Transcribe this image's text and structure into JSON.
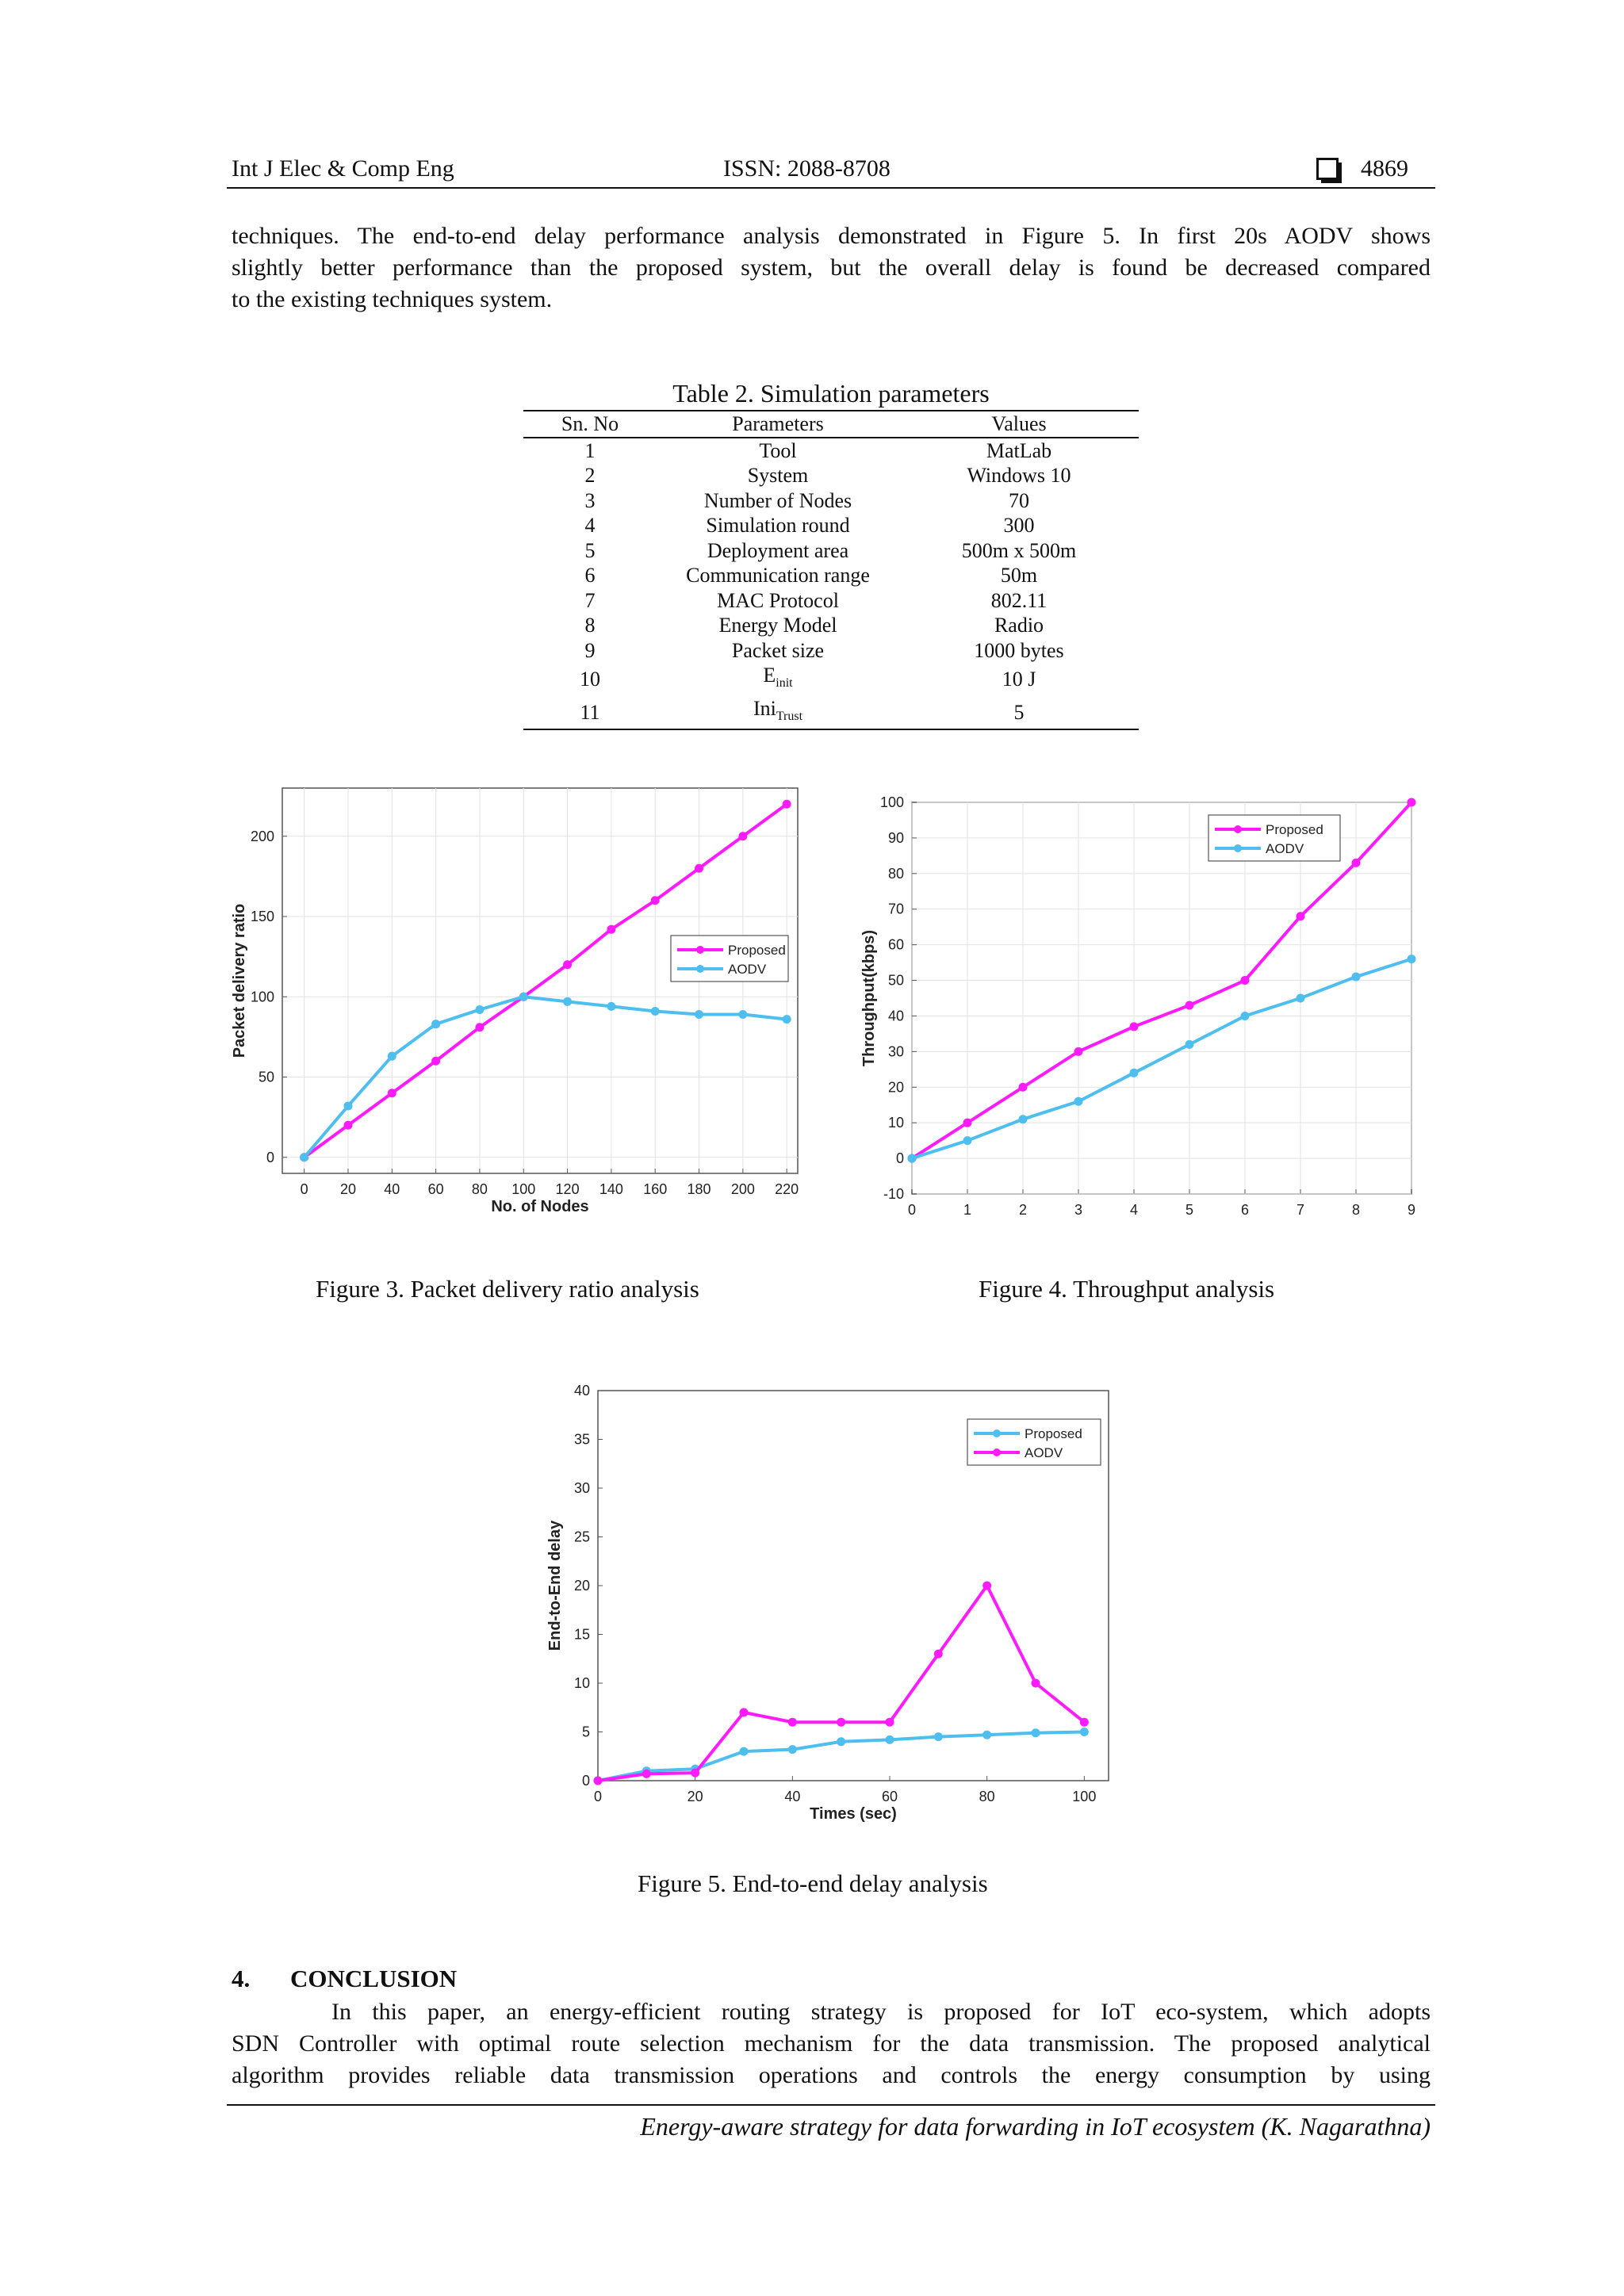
{
  "header": {
    "journal": "Int J Elec & Comp Eng",
    "issn": "ISSN: 2088-8708",
    "page": "4869"
  },
  "intro_paragraph": [
    "techniques. The end-to-end delay performance analysis demonstrated in Figure 5. In first 20s AODV shows",
    "slightly better performance than the proposed system, but the overall delay is found be decreased compared",
    "to the existing techniques system."
  ],
  "table": {
    "caption": "Table 2. Simulation parameters",
    "headers": [
      "Sn. No",
      "Parameters",
      "Values"
    ],
    "rows": [
      {
        "no": "1",
        "param": "Tool",
        "value": "MatLab"
      },
      {
        "no": "2",
        "param": "System",
        "value": "Windows 10"
      },
      {
        "no": "3",
        "param": "Number of Nodes",
        "value": "70"
      },
      {
        "no": "4",
        "param": "Simulation round",
        "value": "300"
      },
      {
        "no": "5",
        "param": "Deployment area",
        "value": "500m x 500m"
      },
      {
        "no": "6",
        "param": "Communication range",
        "value": "50m"
      },
      {
        "no": "7",
        "param": "MAC Protocol",
        "value": "802.11"
      },
      {
        "no": "8",
        "param": "Energy Model",
        "value": "Radio"
      },
      {
        "no": "9",
        "param": "Packet size",
        "value": "1000 bytes"
      },
      {
        "no": "10",
        "param": "E",
        "param_sub": "init",
        "value": "10 J"
      },
      {
        "no": "11",
        "param": "Ini",
        "param_sub": "Trust",
        "value": "5"
      }
    ]
  },
  "chart_data": [
    {
      "type": "line",
      "caption": "Figure 3. Packet delivery ratio analysis",
      "xlabel": "No. of Nodes",
      "ylabel": "Packet delivery ratio",
      "xlim": [
        -10,
        225
      ],
      "ylim": [
        -10,
        230
      ],
      "xticks": [
        0,
        20,
        40,
        60,
        80,
        100,
        120,
        140,
        160,
        180,
        200,
        220
      ],
      "yticks": [
        0,
        50,
        100,
        150,
        200
      ],
      "grid": true,
      "legend": "center-right",
      "x": [
        0,
        20,
        40,
        60,
        80,
        100,
        120,
        140,
        160,
        180,
        200,
        220
      ],
      "series": [
        {
          "name": "Proposed",
          "color": "#ff1aff",
          "values": [
            0,
            20,
            40,
            60,
            81,
            100,
            120,
            142,
            160,
            180,
            200,
            220
          ]
        },
        {
          "name": "AODV",
          "color": "#4dbeee",
          "values": [
            0,
            32,
            63,
            83,
            92,
            100,
            97,
            94,
            91,
            89,
            89,
            86
          ]
        }
      ]
    },
    {
      "type": "line",
      "caption": "Figure 4. Throughput analysis",
      "xlabel": "",
      "ylabel": "Throughput(kbps)",
      "xlim": [
        0,
        9
      ],
      "ylim": [
        -10,
        100
      ],
      "xticks": [
        0,
        1,
        2,
        3,
        4,
        5,
        6,
        7,
        8,
        9
      ],
      "yticks": [
        -10,
        0,
        10,
        20,
        30,
        40,
        50,
        60,
        70,
        80,
        90,
        100
      ],
      "grid": true,
      "legend": "top-right",
      "x": [
        0,
        1,
        2,
        3,
        4,
        5,
        6,
        7,
        8,
        9
      ],
      "series": [
        {
          "name": "Proposed",
          "color": "#ff1aff",
          "values": [
            0,
            10,
            20,
            30,
            37,
            43,
            50,
            68,
            83,
            100
          ]
        },
        {
          "name": "AODV",
          "color": "#4dbeee",
          "values": [
            0,
            5,
            11,
            16,
            24,
            32,
            40,
            45,
            51,
            56
          ]
        }
      ]
    },
    {
      "type": "line",
      "caption": "Figure 5. End-to-end delay analysis",
      "xlabel": "Times (sec)",
      "ylabel": "End-to-End delay",
      "xlim": [
        0,
        105
      ],
      "ylim": [
        0,
        40
      ],
      "xticks": [
        0,
        20,
        40,
        60,
        80,
        100
      ],
      "yticks": [
        0,
        5,
        10,
        15,
        20,
        25,
        30,
        35,
        40
      ],
      "grid": false,
      "legend": "top-right",
      "x": [
        0,
        10,
        20,
        30,
        40,
        50,
        60,
        70,
        80,
        90,
        100
      ],
      "series": [
        {
          "name": "Proposed",
          "color": "#4dbeee",
          "values": [
            0,
            1,
            1.2,
            3,
            3.2,
            4,
            4.2,
            4.5,
            4.7,
            4.9,
            5
          ]
        },
        {
          "name": "AODV",
          "color": "#ff1aff",
          "values": [
            0,
            0.7,
            0.8,
            7,
            6,
            6,
            6,
            13,
            20,
            10,
            6
          ]
        }
      ]
    }
  ],
  "conclusion": {
    "heading_number": "4.",
    "heading_title": "CONCLUSION",
    "lines": [
      "In this paper, an energy-efficient routing strategy is proposed for IoT eco-system, which adopts",
      "SDN Controller with optimal route selection mechanism for the data transmission. The proposed analytical",
      "algorithm provides reliable data transmission operations and controls the energy consumption by using"
    ]
  },
  "footer": "Energy-aware strategy for data forwarding in IoT ecosystem (K. Nagarathna)"
}
